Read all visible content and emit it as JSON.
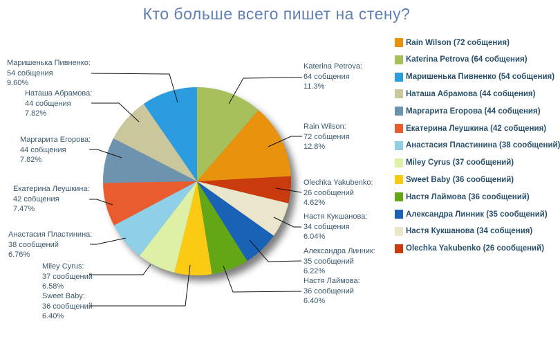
{
  "title": "Кто больше всего пишет на стену?",
  "chart_data": {
    "type": "pie",
    "legend_position": "right",
    "direction": "clockwise",
    "start_angle_deg": 0,
    "slices": [
      {
        "name": "Rain Wilson",
        "count": 72,
        "count_label": "72 собщения",
        "percent": 12.8,
        "percent_label": "12.8%",
        "legend_label": "Rain Wilson (72 собщения)",
        "color": "#E8920E"
      },
      {
        "name": "Katerina Petrova",
        "count": 64,
        "count_label": "64 собщения",
        "percent": 11.3,
        "percent_label": "11.3%",
        "legend_label": "Katerina Petrova (64 собщения)",
        "color": "#A6C05B"
      },
      {
        "name": "Маришенька Пивненко",
        "count": 54,
        "count_label": "54 собщения",
        "percent": 9.6,
        "percent_label": "9.60%",
        "legend_label": "Маришенька Пивненко (54 собщения)",
        "color": "#2B9CE0"
      },
      {
        "name": "Наташа Абрамова",
        "count": 44,
        "count_label": "44 собщения",
        "percent": 7.82,
        "percent_label": "7.82%",
        "legend_label": "Наташа Абрамова (44 собщения)",
        "color": "#CBC79C"
      },
      {
        "name": "Маргарита Егорова",
        "count": 44,
        "count_label": "44 собщения",
        "percent": 7.82,
        "percent_label": "7.82%",
        "legend_label": "Маргарита Егорова (44 собщения)",
        "color": "#6D93AE"
      },
      {
        "name": "Екатерина Леушкина",
        "count": 42,
        "count_label": "42 собщения",
        "percent": 7.47,
        "percent_label": "7.47%",
        "legend_label": "Екатерина Леушкина (42 собщения)",
        "color": "#E85C30"
      },
      {
        "name": "Анастасия Пластинина",
        "count": 38,
        "count_label": "38 сообщений",
        "percent": 6.76,
        "percent_label": "6.76%",
        "legend_label": "Анастасия Пластинина (38 сообщений)",
        "color": "#8FD0E8"
      },
      {
        "name": "Miley Cyrus",
        "count": 37,
        "count_label": "37 сообщений",
        "percent": 6.58,
        "percent_label": "6.58%",
        "legend_label": "Miley Cyrus (37 сообщений)",
        "color": "#DDF0A6"
      },
      {
        "name": "Sweet Baby",
        "count": 36,
        "count_label": "36 сообщений",
        "percent": 6.4,
        "percent_label": "6.40%",
        "legend_label": "Sweet Baby (36 сообщений)",
        "color": "#FACB12"
      },
      {
        "name": "Настя Лаймова",
        "count": 36,
        "count_label": "36 сообщений",
        "percent": 6.4,
        "percent_label": "6.40%",
        "legend_label": "Настя Лаймова (36 сообщений)",
        "color": "#63A716"
      },
      {
        "name": "Александра Линник",
        "count": 35,
        "count_label": "35 сообщений",
        "percent": 6.22,
        "percent_label": "6.22%",
        "legend_label": "Александра Линник (35 сообщений)",
        "color": "#1A62B6"
      },
      {
        "name": "Настя Кукшанова",
        "count": 34,
        "count_label": "34 собщения",
        "percent": 6.04,
        "percent_label": "6.04%",
        "legend_label": "Настя Кукшанова (34 собщения)",
        "color": "#EAE6CB"
      },
      {
        "name": "Olechka Yakubenko",
        "count": 26,
        "count_label": "26 сообщений",
        "percent": 4.62,
        "percent_label": "4.62%",
        "legend_label": "Olechka Yakubenko (26 сообщений)",
        "color": "#C93A0D"
      }
    ],
    "pie_order": [
      1,
      0,
      12,
      11,
      10,
      9,
      8,
      7,
      6,
      5,
      4,
      3,
      2
    ]
  }
}
